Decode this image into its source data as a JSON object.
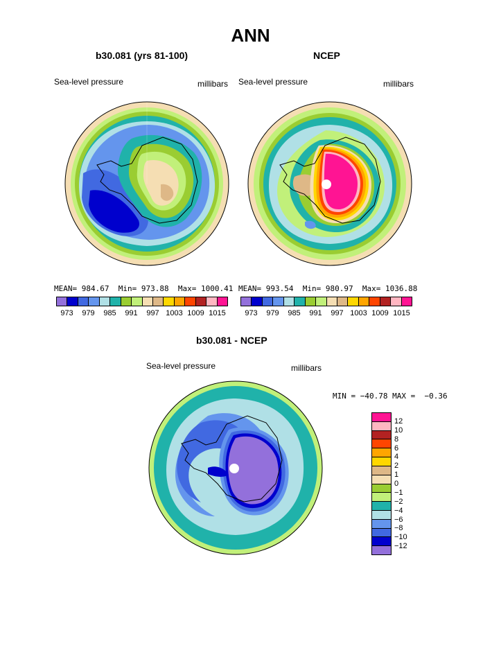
{
  "title": "ANN",
  "panels": [
    {
      "title": "b30.081 (yrs 81-100)",
      "left_label": "Sea-level pressure",
      "right_label": "millibars",
      "stats": {
        "mean_label": "MEAN=",
        "mean": "984.67",
        "min_label": "Min=",
        "min": "973.88",
        "max_label": "Max=",
        "max": "1000.41"
      }
    },
    {
      "title": "NCEP",
      "left_label": "Sea-level pressure",
      "right_label": "millibars",
      "stats": {
        "mean_label": "MEAN=",
        "mean": "993.54",
        "min_label": "Min=",
        "min": "980.97",
        "max_label": "Max=",
        "max": "1036.88"
      }
    },
    {
      "title": "b30.081 - NCEP",
      "left_label": "Sea-level pressure",
      "right_label": "millibars",
      "stats_text": "MIN = −40.78 MAX =  −0.36"
    }
  ],
  "colorbar_abs": {
    "colors": [
      "#9370db",
      "#0000cd",
      "#4169e1",
      "#6495ed",
      "#b0e0e6",
      "#20b2aa",
      "#9acd32",
      "#c1f07a",
      "#f5deb3",
      "#deb887",
      "#ffd700",
      "#ffa500",
      "#ff4500",
      "#b22222",
      "#ffb6c1",
      "#ff1493"
    ],
    "ticks": [
      "973",
      "979",
      "985",
      "991",
      "997",
      "1003",
      "1009",
      "1015"
    ]
  },
  "colorbar_diff": {
    "colors_top_to_bottom": [
      "#ff1493",
      "#ffb6c1",
      "#b22222",
      "#ff4500",
      "#ffa500",
      "#ffd700",
      "#deb887",
      "#f5deb3",
      "#9acd32",
      "#c1f07a",
      "#20b2aa",
      "#b0e0e6",
      "#6495ed",
      "#4169e1",
      "#0000cd",
      "#9370db"
    ],
    "ticks_top_to_bottom": [
      "12",
      "10",
      "8",
      "6",
      "4",
      "2",
      "1",
      "0",
      "−1",
      "−2",
      "−4",
      "−6",
      "−8",
      "−10",
      "−12"
    ]
  },
  "map_colors": {
    "purple": "#9370db",
    "navy": "#0000cd",
    "royal": "#4169e1",
    "cornflower": "#6495ed",
    "powder": "#b0e0e6",
    "teal": "#20b2aa",
    "olive": "#9acd32",
    "lime": "#c1f07a",
    "wheat": "#f5deb3",
    "tan": "#deb887",
    "gold": "#ffd700",
    "orange": "#ffa500",
    "red": "#ff4500",
    "firebrick": "#b22222",
    "pink": "#ffb6c1",
    "magenta": "#ff1493"
  }
}
